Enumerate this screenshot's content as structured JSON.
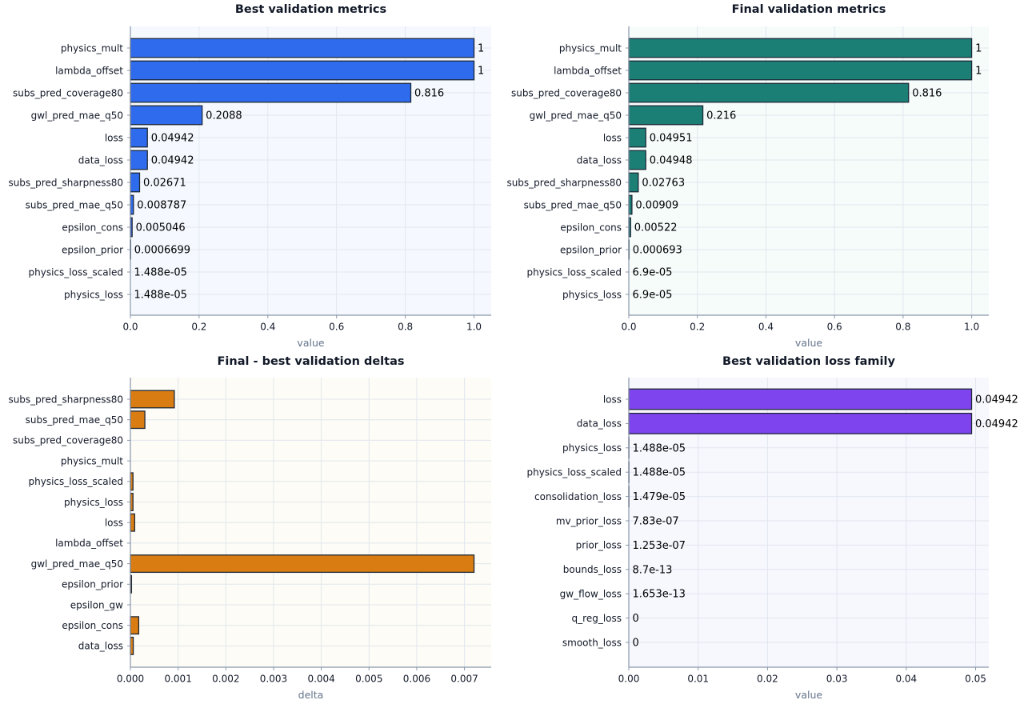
{
  "chart_data": [
    {
      "type": "bar",
      "orientation": "horizontal",
      "title": "Best validation metrics",
      "xlabel": "value",
      "ylabel": "",
      "xlim": [
        0,
        1.05
      ],
      "xticks": [
        "0.0",
        "0.2",
        "0.4",
        "0.6",
        "0.8",
        "1.0"
      ],
      "xtick_values": [
        0,
        0.2,
        0.4,
        0.6,
        0.8,
        1.0
      ],
      "grid": true,
      "bar_color": "#2f6bed",
      "background": "#f5f9ff",
      "categories": [
        "physics_mult",
        "lambda_offset",
        "subs_pred_coverage80",
        "gwl_pred_mae_q50",
        "loss",
        "data_loss",
        "subs_pred_sharpness80",
        "subs_pred_mae_q50",
        "epsilon_cons",
        "epsilon_prior",
        "physics_loss_scaled",
        "physics_loss"
      ],
      "values": [
        1,
        1,
        0.816,
        0.2088,
        0.04942,
        0.04942,
        0.02671,
        0.008787,
        0.005046,
        0.0006699,
        1.488e-05,
        1.488e-05
      ],
      "data_labels": [
        "1",
        "1",
        "0.816",
        "0.2088",
        "0.04942",
        "0.04942",
        "0.02671",
        "0.008787",
        "0.005046",
        "0.0006699",
        "1.488e-05",
        "1.488e-05"
      ]
    },
    {
      "type": "bar",
      "orientation": "horizontal",
      "title": "Final validation metrics",
      "xlabel": "value",
      "ylabel": "",
      "xlim": [
        0,
        1.05
      ],
      "xticks": [
        "0.0",
        "0.2",
        "0.4",
        "0.6",
        "0.8",
        "1.0"
      ],
      "xtick_values": [
        0,
        0.2,
        0.4,
        0.6,
        0.8,
        1.0
      ],
      "grid": true,
      "bar_color": "#1b7f76",
      "background": "#f5fcfa",
      "categories": [
        "physics_mult",
        "lambda_offset",
        "subs_pred_coverage80",
        "gwl_pred_mae_q50",
        "loss",
        "data_loss",
        "subs_pred_sharpness80",
        "subs_pred_mae_q50",
        "epsilon_cons",
        "epsilon_prior",
        "physics_loss_scaled",
        "physics_loss"
      ],
      "values": [
        1,
        1,
        0.816,
        0.216,
        0.04951,
        0.04948,
        0.02763,
        0.00909,
        0.00522,
        0.000693,
        6.9e-05,
        6.9e-05
      ],
      "data_labels": [
        "1",
        "1",
        "0.816",
        "0.216",
        "0.04951",
        "0.04948",
        "0.02763",
        "0.00909",
        "0.00522",
        "0.000693",
        "6.9e-05",
        "6.9e-05"
      ]
    },
    {
      "type": "bar",
      "orientation": "horizontal",
      "title": "Final - best validation deltas",
      "xlabel": "delta",
      "ylabel": "",
      "xlim": [
        0,
        0.00756
      ],
      "xticks": [
        "0.000",
        "0.001",
        "0.002",
        "0.003",
        "0.004",
        "0.005",
        "0.006",
        "0.007"
      ],
      "xtick_values": [
        0,
        0.001,
        0.002,
        0.003,
        0.004,
        0.005,
        0.006,
        0.007
      ],
      "grid": true,
      "bar_color": "#d97d12",
      "background": "#fdfcf6",
      "categories": [
        "subs_pred_sharpness80",
        "subs_pred_mae_q50",
        "subs_pred_coverage80",
        "physics_mult",
        "physics_loss_scaled",
        "physics_loss",
        "loss",
        "lambda_offset",
        "gwl_pred_mae_q50",
        "epsilon_prior",
        "epsilon_gw",
        "epsilon_cons",
        "data_loss"
      ],
      "values": [
        0.00092,
        0.000303,
        0,
        0,
        5.41e-05,
        5.41e-05,
        9e-05,
        0,
        0.0072,
        2.31e-05,
        0,
        0.000174,
        6e-05
      ],
      "data_labels": []
    },
    {
      "type": "bar",
      "orientation": "horizontal",
      "title": "Best validation loss family",
      "xlabel": "value",
      "ylabel": "",
      "xlim": [
        0,
        0.0519
      ],
      "xticks": [
        "0.00",
        "0.01",
        "0.02",
        "0.03",
        "0.04",
        "0.05"
      ],
      "xtick_values": [
        0,
        0.01,
        0.02,
        0.03,
        0.04,
        0.05
      ],
      "grid": true,
      "bar_color": "#7e44ee",
      "background": "#f7f7fe",
      "categories": [
        "loss",
        "data_loss",
        "physics_loss",
        "physics_loss_scaled",
        "consolidation_loss",
        "mv_prior_loss",
        "prior_loss",
        "bounds_loss",
        "gw_flow_loss",
        "q_reg_loss",
        "smooth_loss"
      ],
      "values": [
        0.04942,
        0.04942,
        1.488e-05,
        1.488e-05,
        1.479e-05,
        7.83e-07,
        1.253e-07,
        8.7e-13,
        1.653e-13,
        0,
        0
      ],
      "data_labels": [
        "0.04942",
        "0.04942",
        "1.488e-05",
        "1.488e-05",
        "1.479e-05",
        "7.83e-07",
        "1.253e-07",
        "8.7e-13",
        "1.653e-13",
        "0",
        "0"
      ]
    }
  ]
}
